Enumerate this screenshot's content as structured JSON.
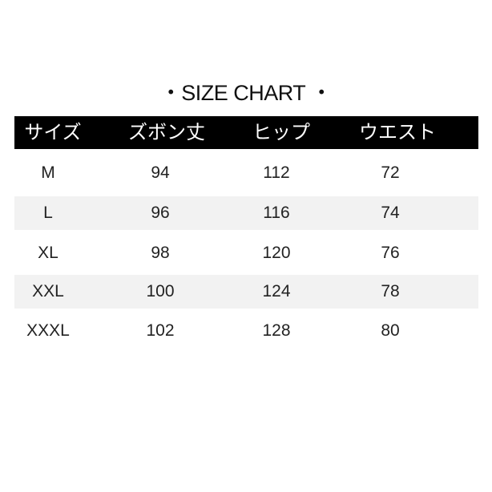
{
  "title": "・SIZE CHART ・",
  "table": {
    "headers": [
      "サイズ",
      "ズボン丈",
      "ヒップ",
      "ウエスト"
    ],
    "rows": [
      [
        "M",
        "94",
        "112",
        "72"
      ],
      [
        "L",
        "96",
        "116",
        "74"
      ],
      [
        "XL",
        "98",
        "120",
        "76"
      ],
      [
        "XXL",
        "100",
        "124",
        "78"
      ],
      [
        "XXXL",
        "102",
        "128",
        "80"
      ]
    ]
  },
  "colors": {
    "header_bg": "#000000",
    "header_text": "#ffffff",
    "stripe": "#f2f2f2"
  }
}
